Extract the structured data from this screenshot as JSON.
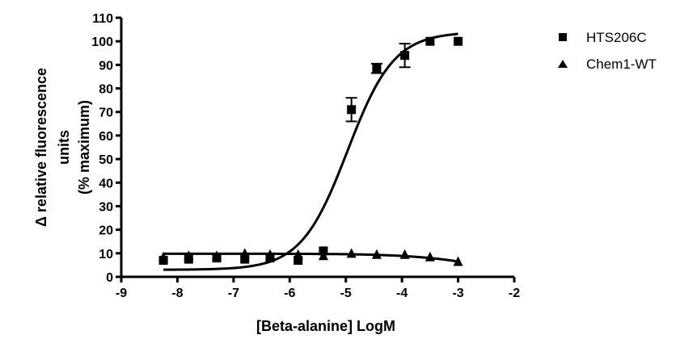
{
  "chart_data": {
    "type": "scatter",
    "title": "",
    "xlabel": "[Beta-alanine] LogM",
    "ylabel_lines": [
      "Δ relative fluorescence",
      "units",
      "(% maximum)"
    ],
    "xlim": [
      -9,
      -2
    ],
    "ylim": [
      0,
      110
    ],
    "x_ticks": [
      -9,
      -8,
      -7,
      -6,
      -5,
      -4,
      -3,
      -2
    ],
    "y_ticks": [
      0,
      10,
      20,
      30,
      40,
      50,
      60,
      70,
      80,
      90,
      100,
      110
    ],
    "grid": false,
    "legend_position": "top-right",
    "series": [
      {
        "name": "HTS206C",
        "marker": "square",
        "color": "#000000",
        "points": [
          {
            "x": -8.25,
            "y": 7
          },
          {
            "x": -7.8,
            "y": 7.5
          },
          {
            "x": -7.3,
            "y": 8
          },
          {
            "x": -6.8,
            "y": 7.5
          },
          {
            "x": -6.35,
            "y": 8
          },
          {
            "x": -5.85,
            "y": 7
          },
          {
            "x": -5.4,
            "y": 11
          },
          {
            "x": -4.9,
            "y": 71,
            "err": 5
          },
          {
            "x": -4.45,
            "y": 88.5,
            "err": 2
          },
          {
            "x": -3.95,
            "y": 94,
            "err": 5
          },
          {
            "x": -3.5,
            "y": 100
          },
          {
            "x": -3.0,
            "y": 100
          }
        ],
        "fit": {
          "model": "sigmoid",
          "bottom": 3,
          "top": 104,
          "logEC50": -4.97,
          "hill": 1.05
        }
      },
      {
        "name": "Chem1-WT",
        "marker": "triangle",
        "color": "#000000",
        "points": [
          {
            "x": -8.25,
            "y": 8.5
          },
          {
            "x": -7.8,
            "y": 9
          },
          {
            "x": -7.3,
            "y": 9
          },
          {
            "x": -6.8,
            "y": 10
          },
          {
            "x": -6.35,
            "y": 9.5
          },
          {
            "x": -5.85,
            "y": 9.5
          },
          {
            "x": -5.4,
            "y": 9
          },
          {
            "x": -4.9,
            "y": 10
          },
          {
            "x": -4.45,
            "y": 9.5
          },
          {
            "x": -3.95,
            "y": 9.5
          },
          {
            "x": -3.5,
            "y": 8.5
          },
          {
            "x": -3.0,
            "y": 6.5
          }
        ],
        "fit": {
          "model": "flat-decline",
          "y0": 9.8,
          "decline_at": -3.0,
          "y_end": 6.5
        }
      }
    ]
  }
}
